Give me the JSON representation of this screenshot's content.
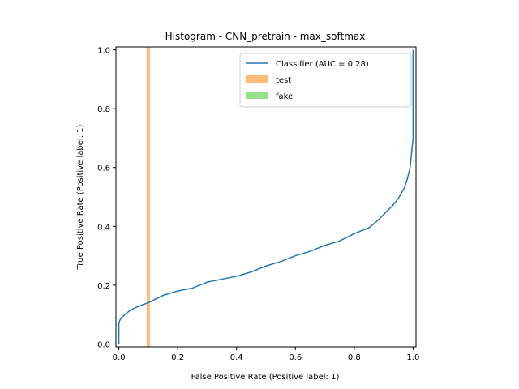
{
  "chart_data": {
    "type": "line",
    "title": "Histogram - CNN_pretrain - max_softmax",
    "xlabel": "False Positive Rate (Positive label: 1)",
    "ylabel": "True Positive Rate (Positive label: 1)",
    "xlim": [
      -0.01,
      1.01
    ],
    "ylim": [
      -0.01,
      1.01
    ],
    "xticks": [
      "0.0",
      "0.2",
      "0.4",
      "0.6",
      "0.8",
      "1.0"
    ],
    "yticks": [
      "0.0",
      "0.2",
      "0.4",
      "0.6",
      "0.8",
      "1.0"
    ],
    "legend_position": "upper-right",
    "grid": false,
    "series": [
      {
        "name": "Classifier (AUC = 0.28)",
        "kind": "line",
        "color": "#1f77b4",
        "x": [
          0.0,
          0.0,
          0.003,
          0.01,
          0.02,
          0.04,
          0.06,
          0.08,
          0.1,
          0.12,
          0.15,
          0.2,
          0.25,
          0.3,
          0.35,
          0.4,
          0.45,
          0.5,
          0.55,
          0.6,
          0.65,
          0.7,
          0.75,
          0.8,
          0.85,
          0.88,
          0.9,
          0.93,
          0.95,
          0.97,
          0.98,
          0.99,
          0.995,
          1.0,
          1.0
        ],
        "y": [
          0.0,
          0.07,
          0.08,
          0.09,
          0.1,
          0.115,
          0.125,
          0.133,
          0.14,
          0.15,
          0.165,
          0.18,
          0.19,
          0.21,
          0.22,
          0.23,
          0.245,
          0.265,
          0.28,
          0.3,
          0.315,
          0.335,
          0.35,
          0.375,
          0.395,
          0.42,
          0.44,
          0.47,
          0.495,
          0.53,
          0.56,
          0.6,
          0.65,
          0.7,
          1.0
        ]
      },
      {
        "name": "test",
        "kind": "vline",
        "color": "#ffbb78",
        "x": 0.1
      },
      {
        "name": "fake",
        "kind": "vline",
        "color": "#98df8a",
        "x": null
      }
    ]
  }
}
